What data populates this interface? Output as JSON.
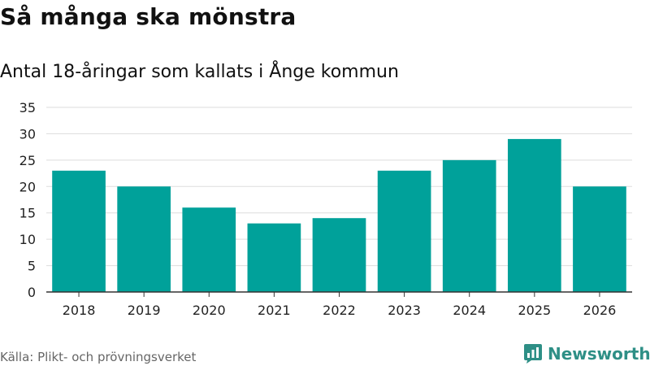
{
  "header": {
    "title": "Så många ska mönstra",
    "subtitle": "Antal 18-åringar som kallats i Ånge kommun"
  },
  "chart_data": {
    "type": "bar",
    "title": "Så många ska mönstra",
    "subtitle": "Antal 18-åringar som kallats i Ånge kommun",
    "categories": [
      "2018",
      "2019",
      "2020",
      "2021",
      "2022",
      "2023",
      "2024",
      "2025",
      "2026"
    ],
    "values": [
      23,
      20,
      16,
      13,
      14,
      23,
      25,
      29,
      20
    ],
    "xlabel": "",
    "ylabel": "",
    "ylim": [
      0,
      35
    ],
    "yticks": [
      0,
      5,
      10,
      15,
      20,
      25,
      30,
      35
    ],
    "grid": true,
    "legend": "none",
    "bar_color": "#00a19a"
  },
  "footer": {
    "source": "Källa: Plikt- och prövningsverket",
    "brand": "Newsworthy",
    "brand_icon": "newsworthy-logo-icon",
    "brand_color": "#2e8f86"
  }
}
